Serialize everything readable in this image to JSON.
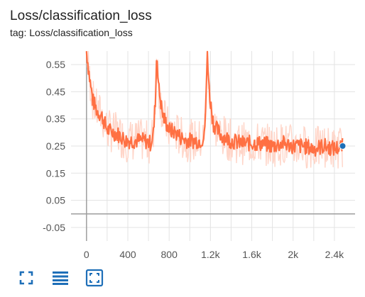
{
  "card": {
    "title": "Loss/classification_loss",
    "tag": "tag: Loss/classification_loss"
  },
  "toolbar": {
    "expand_icon": "fullscreen-icon",
    "data_icon": "lines-menu-icon",
    "fit_icon": "fit-domain-icon"
  },
  "colors": {
    "series_smoothed": "#ff7043",
    "series_raw": "#ffd5c8",
    "grid": "#e3e3e3",
    "zero_axis": "#9e9e9e",
    "marker": "#1e6fb8"
  },
  "chart_data": {
    "type": "line",
    "title": "Loss/classification_loss",
    "xlabel": "",
    "ylabel": "",
    "xlim": [
      -150,
      2600
    ],
    "ylim": [
      -0.1,
      0.6
    ],
    "x_ticks": [
      0,
      400,
      800,
      1200,
      1600,
      2000,
      2400
    ],
    "x_tick_labels": [
      "0",
      "400",
      "800",
      "1.2k",
      "1.6k",
      "2k",
      "2.4k"
    ],
    "y_ticks": [
      0.55,
      0.45,
      0.35,
      0.25,
      0.15,
      0.05,
      -0.05
    ],
    "y_tick_labels": [
      "0.55",
      "0.45",
      "0.35",
      "0.25",
      "0.15",
      "0.05",
      "-0.05"
    ],
    "grid": true,
    "series": [
      {
        "x": [
          0,
          30,
          60,
          100,
          150,
          200,
          260,
          320,
          380,
          440,
          500,
          560,
          620,
          650,
          670,
          680,
          700,
          740,
          800,
          860,
          920,
          980,
          1040,
          1100,
          1140,
          1160,
          1170,
          1190,
          1230,
          1300,
          1400,
          1500,
          1600,
          1700,
          1800,
          1900,
          2000,
          2100,
          2200,
          2300,
          2400,
          2480
        ],
        "y": [
          0.6,
          0.5,
          0.42,
          0.38,
          0.36,
          0.31,
          0.3,
          0.29,
          0.27,
          0.27,
          0.27,
          0.27,
          0.26,
          0.3,
          0.45,
          0.6,
          0.46,
          0.36,
          0.31,
          0.3,
          0.28,
          0.27,
          0.27,
          0.27,
          0.28,
          0.45,
          0.6,
          0.44,
          0.33,
          0.29,
          0.27,
          0.26,
          0.26,
          0.26,
          0.25,
          0.26,
          0.25,
          0.25,
          0.24,
          0.25,
          0.24,
          0.25
        ]
      }
    ],
    "current_point": {
      "x": 2480,
      "y": 0.25
    }
  }
}
